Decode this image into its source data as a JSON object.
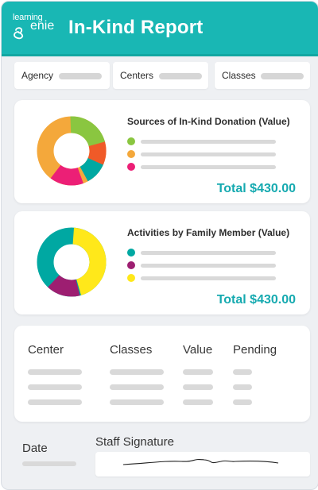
{
  "header": {
    "brand_top": "learning",
    "brand_bottom": "enie",
    "title": "In-Kind Report"
  },
  "filters": {
    "agency": "Agency",
    "centers": "Centers",
    "classes": "Classes"
  },
  "donation": {
    "title": "Sources of In-Kind Donation (Value)",
    "total": "Total $430.00",
    "legend_colors": [
      "#8ac640",
      "#f4a83b",
      "#ec1f76"
    ]
  },
  "activities": {
    "title": "Activities by Family Member (Value)",
    "total": "Total $430.00",
    "legend_colors": [
      "#00a8a2",
      "#9d1e71",
      "#ffe81a"
    ]
  },
  "table": {
    "headers": [
      "Center",
      "Classes",
      "Value",
      "Pending"
    ]
  },
  "footer": {
    "date_label": "Date",
    "signature_label": "Staff Signature"
  }
}
